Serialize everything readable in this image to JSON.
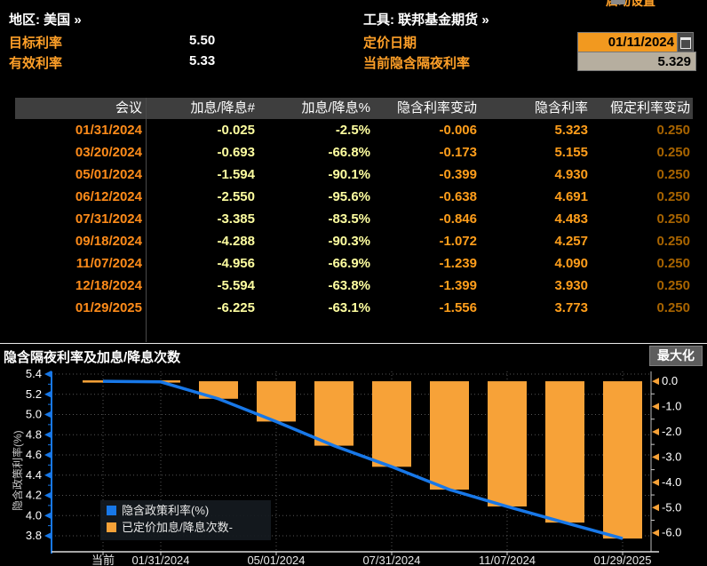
{
  "header": {
    "region_label": "地区:",
    "region_value": "美国",
    "region_more": "»",
    "tool_label": "工具:",
    "tool_value": "联邦基金期货",
    "tool_more": "»",
    "target_rate_label": "目标利率",
    "target_rate_value": "5.50",
    "effective_rate_label": "有效利率",
    "effective_rate_value": "5.33",
    "pricing_date_label": "定价日期",
    "pricing_date_value": "01/11/2024",
    "current_implied_label": "当前隐含隔夜利率",
    "current_implied_value": "5.329",
    "clipped_top_right_text": "启动设置"
  },
  "table": {
    "columns": [
      "会议",
      "加息/降息#",
      "加息/降息%",
      "隐含利率变动",
      "隐含利率",
      "假定利率变动"
    ],
    "rows": [
      [
        "01/31/2024",
        "-0.025",
        "-2.5%",
        "-0.006",
        "5.323",
        "0.250"
      ],
      [
        "03/20/2024",
        "-0.693",
        "-66.8%",
        "-0.173",
        "5.155",
        "0.250"
      ],
      [
        "05/01/2024",
        "-1.594",
        "-90.1%",
        "-0.399",
        "4.930",
        "0.250"
      ],
      [
        "06/12/2024",
        "-2.550",
        "-95.6%",
        "-0.638",
        "4.691",
        "0.250"
      ],
      [
        "07/31/2024",
        "-3.385",
        "-83.5%",
        "-0.846",
        "4.483",
        "0.250"
      ],
      [
        "09/18/2024",
        "-4.288",
        "-90.3%",
        "-1.072",
        "4.257",
        "0.250"
      ],
      [
        "11/07/2024",
        "-4.956",
        "-66.9%",
        "-1.239",
        "4.090",
        "0.250"
      ],
      [
        "12/18/2024",
        "-5.594",
        "-63.8%",
        "-1.399",
        "3.930",
        "0.250"
      ],
      [
        "01/29/2025",
        "-6.225",
        "-63.1%",
        "-1.556",
        "3.773",
        "0.250"
      ]
    ]
  },
  "chart_section": {
    "title": "隐含隔夜利率及加息/降息次数",
    "maximize_label": "最大化"
  },
  "chart_data": {
    "type": "bar",
    "subtype": "line+bar dual axis",
    "title": "隐含隔夜利率及加息/降息次数",
    "x_categories": [
      "当前",
      "01/31/2024",
      "03/20/2024",
      "05/01/2024",
      "06/12/2024",
      "07/31/2024",
      "09/18/2024",
      "11/07/2024",
      "12/18/2024",
      "01/29/2025"
    ],
    "x_label_slots": [
      0,
      1,
      3,
      5,
      7,
      9
    ],
    "series": [
      {
        "name": "隐含政策利率(%)",
        "type": "line",
        "axis": "left",
        "color": "#1878e8",
        "values": [
          5.329,
          5.323,
          5.155,
          4.93,
          4.691,
          4.483,
          4.257,
          4.09,
          3.93,
          3.773
        ]
      },
      {
        "name": "已定价加息/降息次数-",
        "type": "bar",
        "axis": "right",
        "color": "#f7a238",
        "values": [
          null,
          -0.025,
          -0.693,
          -1.594,
          -2.55,
          -3.385,
          -4.288,
          -4.956,
          -5.594,
          -6.225
        ]
      }
    ],
    "left_axis": {
      "label": "隐含政策利率(%)",
      "min": 3.8,
      "max": 5.4,
      "ticks": [
        5.4,
        5.2,
        5.0,
        4.8,
        4.6,
        4.4,
        4.2,
        4.0,
        3.8
      ]
    },
    "right_axis": {
      "label": "已定价加息/降息次数-",
      "min": -6.0,
      "max": 0.0,
      "ticks": [
        0.0,
        -1.0,
        -2.0,
        -3.0,
        -4.0,
        -5.0,
        -6.0
      ]
    },
    "grid": "dotted",
    "legend_position": "bottom-left-inside",
    "colors": {
      "line": "#1878e8",
      "bar": "#f7a238",
      "gridline": "#555555",
      "left_axis_line": "#1878e8",
      "right_tick_arrow": "#f7a238",
      "tick_label": "#ffffff",
      "axis_title": "#c8c8c8"
    }
  }
}
